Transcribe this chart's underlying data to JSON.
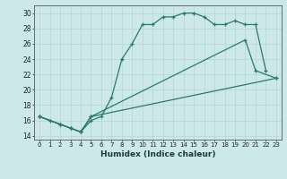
{
  "xlabel": "Humidex (Indice chaleur)",
  "background_color": "#cce8e8",
  "grid_color": "#b8d8d8",
  "line_color": "#2a7a6a",
  "xlim": [
    -0.5,
    23.5
  ],
  "ylim": [
    13.5,
    31.0
  ],
  "xticks": [
    0,
    1,
    2,
    3,
    4,
    5,
    6,
    7,
    8,
    9,
    10,
    11,
    12,
    13,
    14,
    15,
    16,
    17,
    18,
    19,
    20,
    21,
    22,
    23
  ],
  "yticks": [
    14,
    16,
    18,
    20,
    22,
    24,
    26,
    28,
    30
  ],
  "lines": [
    {
      "x": [
        0,
        1,
        2,
        3,
        4,
        5,
        6,
        7,
        8,
        9,
        10,
        11,
        12,
        13,
        14,
        15,
        16,
        17,
        18,
        19,
        20,
        21,
        22
      ],
      "y": [
        16.5,
        16.0,
        15.5,
        15.0,
        14.5,
        16.0,
        16.5,
        19.0,
        24.0,
        26.0,
        28.5,
        28.5,
        29.5,
        29.5,
        30.0,
        30.0,
        29.5,
        28.5,
        28.5,
        29.0,
        28.5,
        28.5,
        22.5
      ]
    },
    {
      "x": [
        0,
        2,
        3,
        4,
        5,
        20,
        21,
        23
      ],
      "y": [
        16.5,
        15.5,
        15.0,
        14.5,
        16.5,
        26.5,
        22.5,
        21.5
      ]
    },
    {
      "x": [
        0,
        2,
        3,
        4,
        5,
        23
      ],
      "y": [
        16.5,
        15.5,
        15.0,
        14.5,
        16.5,
        21.5
      ]
    }
  ]
}
